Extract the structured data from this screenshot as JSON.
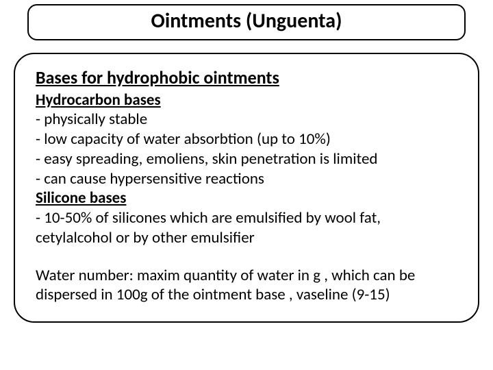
{
  "title": "Ointments (Unguenta)",
  "content": {
    "main_heading": "Bases for hydrophobic ointments",
    "section1_heading": "Hydrocarbon bases",
    "section1_line1": "- physically stable",
    "section1_line2": "- low capacity of water absorbtion (up to 10%)",
    "section1_line3": "- easy spreading, emoliens, skin penetration is limited",
    "section1_line4": "- can cause hypersensitive reactions",
    "section2_heading": "Silicone bases",
    "section2_line1": "- 10-50% of silicones which are emulsified by wool fat, cetylalcohol or by other emulsifier",
    "footer_line": "Water number: maxim quantity of water in g , which can be dispersed in 100g of the ointment base , vaseline (9-15)"
  },
  "colors": {
    "background": "#ffffff",
    "text": "#000000",
    "border": "#000000"
  },
  "typography": {
    "title_fontsize": 30,
    "heading_fontsize": 26,
    "body_fontsize": 23,
    "font_family": "Calibri"
  }
}
